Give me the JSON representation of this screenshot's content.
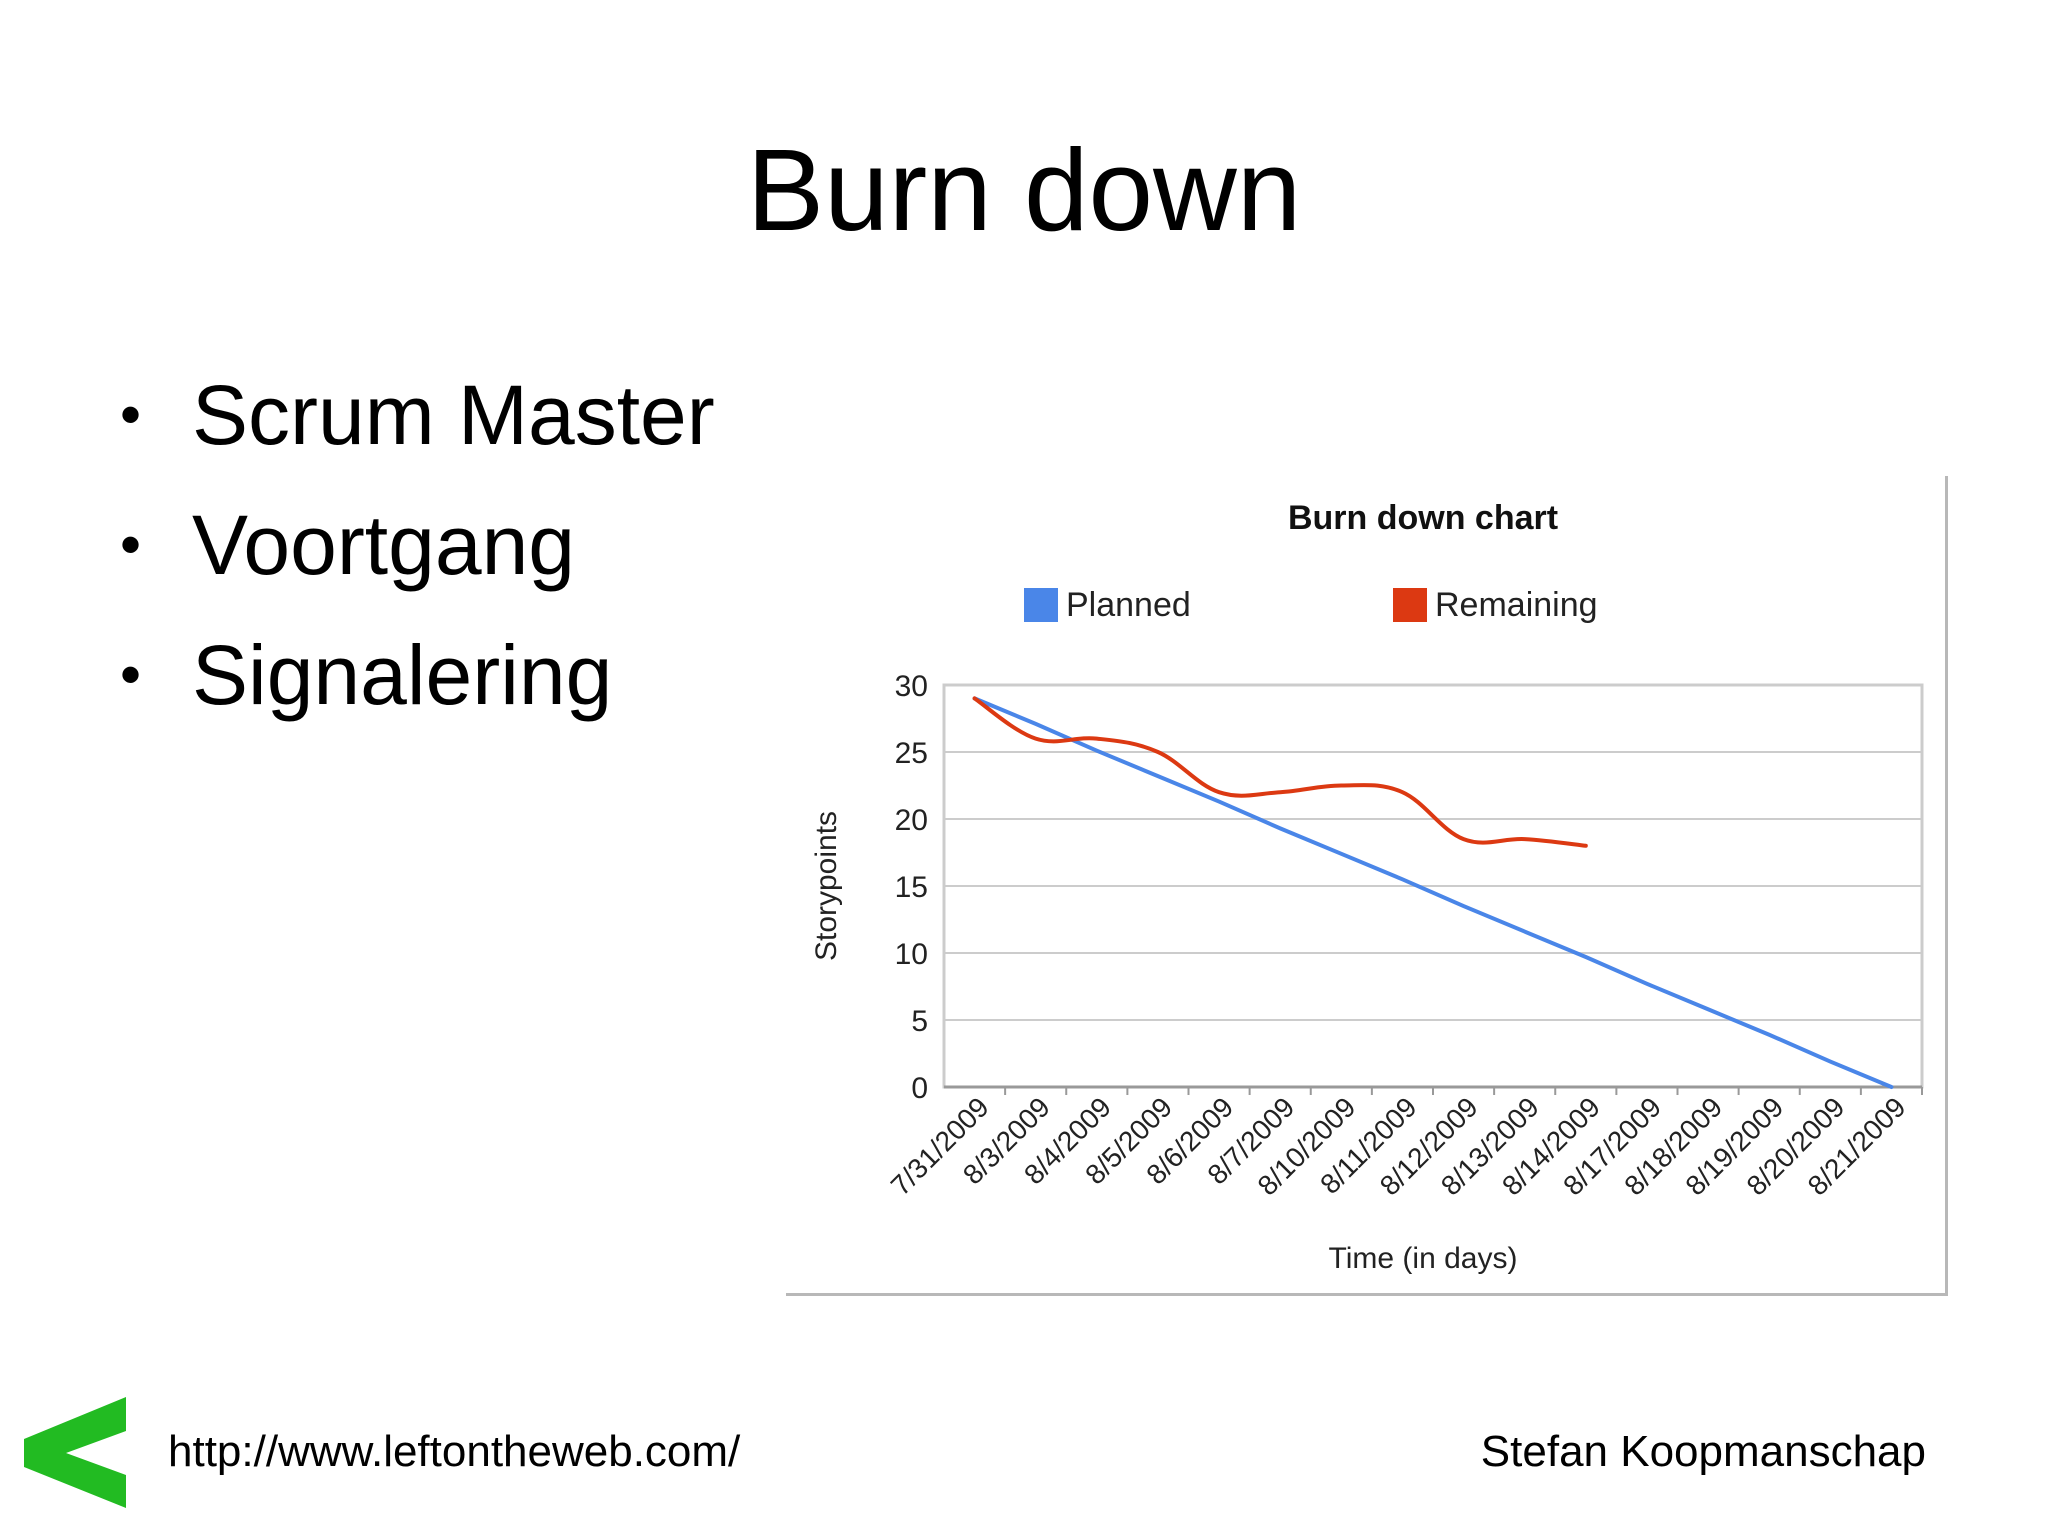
{
  "slide": {
    "title": "Burn down",
    "bullets": [
      "Scrum Master",
      "Voortgang",
      "Signalering"
    ]
  },
  "footer": {
    "url": "http://www.leftontheweb.com/",
    "author": "Stefan Koopmanschap"
  },
  "colors": {
    "planned": "#4a86e8",
    "remaining": "#dc3912",
    "logo": "#22bb22"
  },
  "logo_icon": "left-angle-logo",
  "chart_data": {
    "type": "line",
    "title": "Burn down chart",
    "xlabel": "Time (in days)",
    "ylabel": "Storypoints",
    "categories": [
      "7/31/2009",
      "8/3/2009",
      "8/4/2009",
      "8/5/2009",
      "8/6/2009",
      "8/7/2009",
      "8/10/2009",
      "8/11/2009",
      "8/12/2009",
      "8/13/2009",
      "8/14/2009",
      "8/17/2009",
      "8/18/2009",
      "8/19/2009",
      "8/20/2009",
      "8/21/2009"
    ],
    "ylim": [
      0,
      30
    ],
    "yticks": [
      0,
      5,
      10,
      15,
      20,
      25,
      30
    ],
    "grid": true,
    "legend_position": "top",
    "series": [
      {
        "name": "Planned",
        "values": [
          29,
          27.1,
          25.1,
          23.2,
          21.3,
          19.3,
          17.4,
          15.5,
          13.5,
          11.6,
          9.7,
          7.7,
          5.8,
          3.9,
          1.9,
          0
        ]
      },
      {
        "name": "Remaining",
        "values": [
          29,
          26,
          26,
          25,
          22,
          22,
          22.5,
          22,
          18.5,
          18.5,
          18,
          null,
          null,
          null,
          null,
          null
        ]
      }
    ]
  }
}
